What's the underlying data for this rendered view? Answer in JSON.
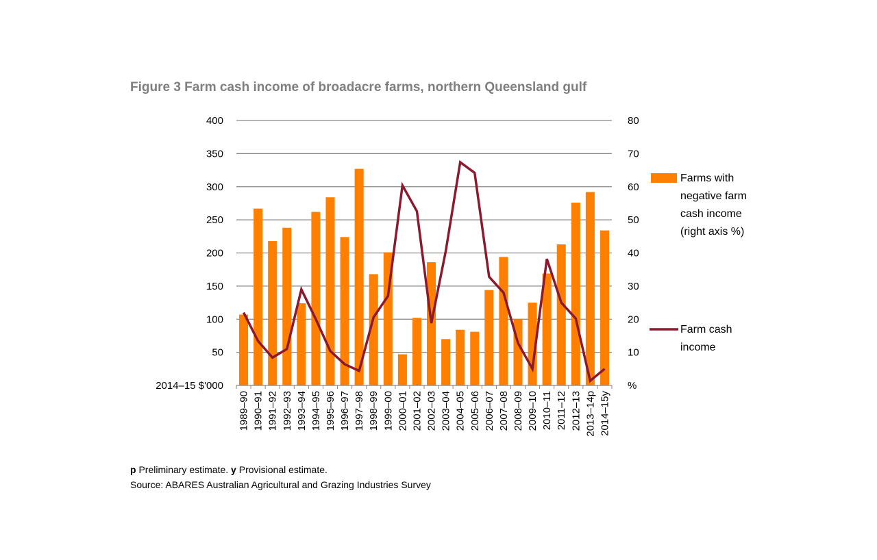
{
  "title": "Figure 3 Farm cash income of broadacre farms, northern Queensland gulf",
  "chart_data": {
    "type": "bar+line",
    "categories": [
      "1989–90",
      "1990–91",
      "1991–92",
      "1992–93",
      "1993–94",
      "1994–95",
      "1995–96",
      "1996–97",
      "1997–98",
      "1998–99",
      "1999–00",
      "2000–01",
      "2001–02",
      "2002–03",
      "2003–04",
      "2004–05",
      "2005–06",
      "2006–07",
      "2007–08",
      "2008–09",
      "2009–10",
      "2010–11",
      "2011–12",
      "2012–13",
      "2013–14p",
      "2014–15y"
    ],
    "left_axis": {
      "label": "2014–15 $'000",
      "ylim": [
        0,
        400
      ],
      "ticks": [
        "50",
        "100",
        "150",
        "200",
        "250",
        "300",
        "350",
        "400"
      ]
    },
    "right_axis": {
      "label": "%",
      "ylim": [
        0,
        80
      ],
      "ticks": [
        "10",
        "20",
        "30",
        "40",
        "50",
        "60",
        "70",
        "80"
      ]
    },
    "grid": true,
    "legend_position": "right",
    "series": [
      {
        "name": "Farms with negative farm cash income (right axis %)",
        "type": "bar",
        "axis": "right",
        "color": "#FF7F00",
        "values": [
          21.4,
          53.4,
          43.6,
          47.6,
          24.8,
          52.4,
          56.8,
          44.8,
          65.4,
          33.6,
          40.2,
          9.4,
          20.4,
          37.2,
          14.0,
          16.8,
          16.2,
          28.8,
          38.8,
          20.0,
          25.0,
          33.8,
          42.6,
          55.2,
          58.4,
          46.8
        ]
      },
      {
        "name": "Farm cash income",
        "type": "line",
        "axis": "left",
        "color": "#8B1A2E",
        "values": [
          110,
          67,
          42,
          55,
          145,
          100,
          52,
          32,
          22,
          103,
          135,
          302,
          263,
          94,
          203,
          337,
          321,
          164,
          140,
          64,
          25,
          191,
          125,
          101,
          7,
          25
        ]
      }
    ]
  },
  "legend": {
    "bar_lines": [
      "Farms with",
      "negative farm",
      "cash income",
      "(right axis %)"
    ],
    "line_lines": [
      "Farm cash",
      "income"
    ]
  },
  "footnote": {
    "p": "p",
    "p_text": " Preliminary estimate. ",
    "y": "y",
    "y_text": " Provisional estimate."
  },
  "source": "Source: ABARES Australian Agricultural and Grazing Industries Survey"
}
